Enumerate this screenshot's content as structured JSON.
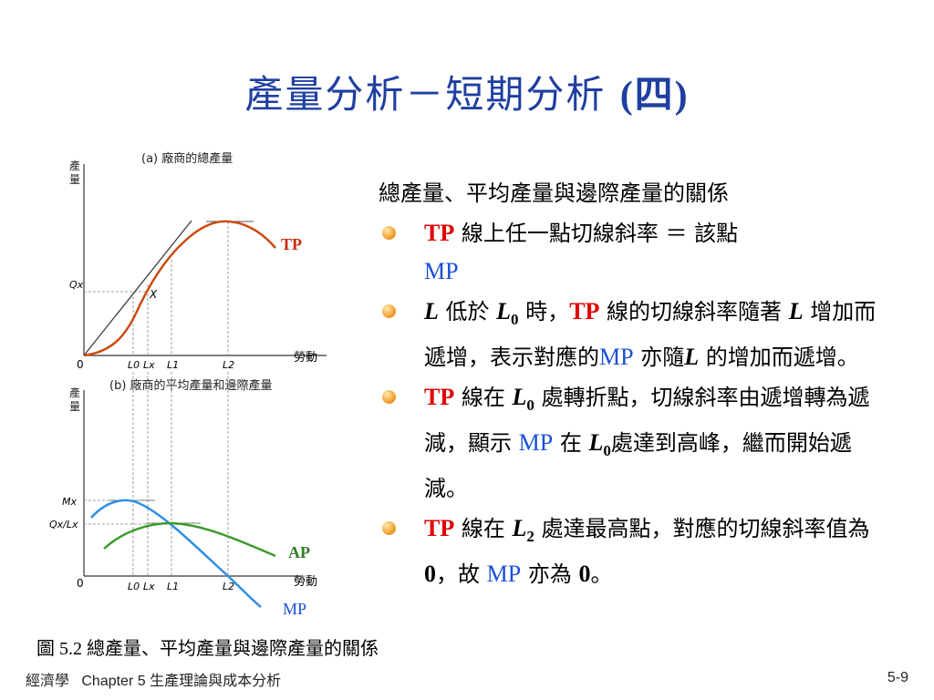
{
  "slide": {
    "title_cjk": "產量分析－短期分析 ",
    "title_latin": "(四)",
    "page_number": "5-9"
  },
  "figure": {
    "panel_a_title": "(a) 廠商的總產量",
    "panel_b_title": "(b) 廠商的平均產量和邊際產量",
    "y_axis_label": "產量",
    "x_axis_label": "勞動",
    "origin_label": "0",
    "tp_label": "TP",
    "ap_label": "AP",
    "mp_label": "MP",
    "point_x_label": "X",
    "qx_label": "Qx",
    "mx_label": "Mx",
    "qx_over_lx_label": "Qx/Lx",
    "ticks": [
      "L0",
      "Lx",
      "L1",
      "L2"
    ],
    "caption": "圖 5.2 總產量、平均產量與邊際產量的關係",
    "colors": {
      "tp": "#cc4a12",
      "ap": "#3a9a2a",
      "mp": "#2f8fe6",
      "axis": "#333333"
    }
  },
  "text": {
    "heading": "總產量、平均產量與邊際產量的關係",
    "b1": {
      "tp": "TP",
      "mid": " 線上任一點切線斜率 ＝ 該點",
      "mp": "MP"
    },
    "b2": {
      "l": "L",
      "t1": " 低於 ",
      "l0": "L",
      "l0sub": "0",
      "t2": " 時，",
      "tp": "TP",
      "t3": " 線的切線斜率隨著 ",
      "l2": "L",
      "t4": " 增加而遞增，表示對應的",
      "mp": "MP",
      "t5": " 亦隨",
      "l3": "L",
      "t6": " 的增加而遞增。"
    },
    "b3": {
      "tp": "TP",
      "t1": " 線在 ",
      "l0": "L",
      "l0sub": "0",
      "t2": " 處轉折點，切線斜率由遞增轉為遞減，顯示 ",
      "mp": "MP",
      "t3": " 在 ",
      "l1": "L",
      "l1sub": "0",
      "t4": "處達到高峰，繼而開始遞減。"
    },
    "b4": {
      "tp": "TP",
      "t1": " 線在 ",
      "l2": "L",
      "l2sub": "2",
      "t2": " 處達最高點，對應的切線斜率值為 ",
      "zero1": "0",
      "t3": "，故 ",
      "mp": "MP",
      "t4": " 亦為 ",
      "zero2": "0",
      "t5": "。"
    }
  },
  "footer": {
    "course": "經濟學",
    "chapter": "Chapter 5 生產理論與成本分析"
  }
}
